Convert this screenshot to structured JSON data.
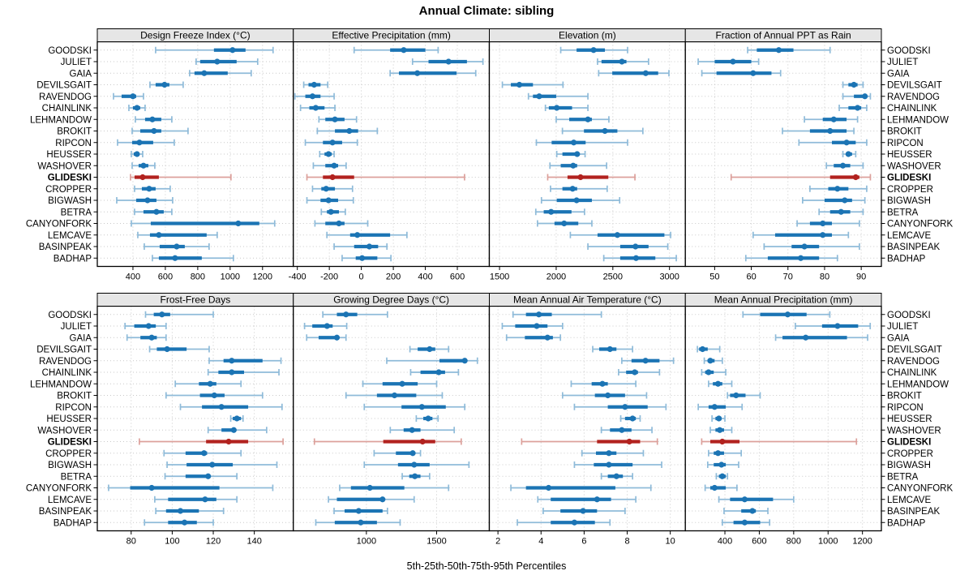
{
  "highlight_site": "GLIDESKI",
  "colors": {
    "blue": "#1b74b4",
    "blue_light": "#8fbbd9",
    "red": "#b2221f",
    "red_light": "#dca09b",
    "strip_bg": "#e6e6e6",
    "grid": "#c9c9c9",
    "border": "#000000",
    "text": "#000000"
  },
  "sites": [
    "GOODSKI",
    "JULIET",
    "GAIA",
    "DEVILSGAIT",
    "RAVENDOG",
    "CHAINLINK",
    "LEHMANDOW",
    "BROKIT",
    "RIPCON",
    "HEUSSER",
    "WASHOVER",
    "GLIDESKI",
    "CROPPER",
    "BIGWASH",
    "BETRA",
    "CANYONFORK",
    "LEMCAVE",
    "BASINPEAK",
    "BADHAP"
  ],
  "chart_data": {
    "type": "trellis-percentile-errorbar",
    "title": "Annual Climate: sibling",
    "xlabel": "5th-25th-50th-75th-95th Percentiles",
    "percentiles": [
      5,
      25,
      50,
      75,
      95
    ],
    "layout": "2 rows x 4 columns",
    "legend": "GLIDESKI series drawn in red, all other sites in blue",
    "panels": [
      {
        "title": "Design Freeze Index (°C)",
        "xlim": [
          180,
          1390
        ],
        "ticks": [
          400,
          600,
          800,
          1000,
          1200
        ],
        "values": [
          [
            540,
            900,
            1015,
            1095,
            1265
          ],
          [
            790,
            815,
            920,
            1040,
            1170
          ],
          [
            750,
            780,
            840,
            985,
            1130
          ],
          [
            505,
            540,
            595,
            625,
            710
          ],
          [
            280,
            330,
            400,
            420,
            465
          ],
          [
            375,
            400,
            425,
            445,
            475
          ],
          [
            415,
            475,
            520,
            575,
            640
          ],
          [
            395,
            445,
            530,
            575,
            740
          ],
          [
            305,
            395,
            440,
            525,
            655
          ],
          [
            390,
            405,
            425,
            440,
            460
          ],
          [
            395,
            435,
            465,
            495,
            535
          ],
          [
            385,
            410,
            460,
            560,
            1005
          ],
          [
            410,
            455,
            500,
            540,
            630
          ],
          [
            300,
            420,
            490,
            545,
            645
          ],
          [
            410,
            465,
            545,
            590,
            640
          ],
          [
            390,
            510,
            1050,
            1180,
            1275
          ],
          [
            430,
            505,
            560,
            855,
            920
          ],
          [
            470,
            565,
            670,
            720,
            870
          ],
          [
            520,
            560,
            660,
            825,
            1020
          ]
        ]
      },
      {
        "title": "Effective Precipitation (mm)",
        "xlim": [
          -425,
          800
        ],
        "ticks": [
          -400,
          -200,
          0,
          200,
          400,
          600
        ],
        "values": [
          [
            -45,
            180,
            265,
            400,
            480
          ],
          [
            320,
            420,
            545,
            660,
            760
          ],
          [
            180,
            235,
            350,
            595,
            715
          ],
          [
            -360,
            -330,
            -295,
            -255,
            -210
          ],
          [
            -415,
            -350,
            -305,
            -255,
            -170
          ],
          [
            -380,
            -325,
            -285,
            -230,
            -165
          ],
          [
            -265,
            -225,
            -165,
            -105,
            -30
          ],
          [
            -275,
            -165,
            -75,
            -20,
            100
          ],
          [
            -350,
            -240,
            -180,
            -120,
            -25
          ],
          [
            -260,
            -230,
            -205,
            -185,
            -170
          ],
          [
            -300,
            -225,
            -170,
            -145,
            -95
          ],
          [
            -340,
            -240,
            -180,
            -45,
            645
          ],
          [
            -305,
            -250,
            -220,
            -165,
            -55
          ],
          [
            -340,
            -255,
            -205,
            -145,
            -50
          ],
          [
            -250,
            -215,
            -190,
            -140,
            -100
          ],
          [
            -290,
            -225,
            -140,
            -105,
            40
          ],
          [
            -215,
            -70,
            -25,
            180,
            285
          ],
          [
            -170,
            -45,
            50,
            105,
            160
          ],
          [
            -120,
            -35,
            5,
            100,
            185
          ]
        ]
      },
      {
        "title": "Elevation (m)",
        "xlim": [
          1410,
          3140
        ],
        "ticks": [
          1500,
          2000,
          2500,
          3000
        ],
        "values": [
          [
            2040,
            2180,
            2330,
            2430,
            2630
          ],
          [
            2365,
            2400,
            2580,
            2620,
            2815
          ],
          [
            2375,
            2495,
            2790,
            2900,
            2995
          ],
          [
            1525,
            1600,
            1675,
            1795,
            2060
          ],
          [
            1755,
            1795,
            1850,
            2000,
            2280
          ],
          [
            1905,
            1935,
            2005,
            2140,
            2280
          ],
          [
            2000,
            2115,
            2280,
            2315,
            2465
          ],
          [
            2055,
            2245,
            2430,
            2540,
            2765
          ],
          [
            1825,
            1960,
            2155,
            2260,
            2630
          ],
          [
            2005,
            2055,
            2185,
            2200,
            2255
          ],
          [
            1945,
            2040,
            2150,
            2185,
            2445
          ],
          [
            1925,
            2100,
            2215,
            2460,
            2695
          ],
          [
            1950,
            2055,
            2145,
            2185,
            2450
          ],
          [
            1870,
            2005,
            2180,
            2315,
            2560
          ],
          [
            1820,
            1890,
            1955,
            2135,
            2250
          ],
          [
            1835,
            1985,
            2070,
            2195,
            2315
          ],
          [
            2125,
            2365,
            2540,
            2955,
            3010
          ],
          [
            2280,
            2565,
            2700,
            2815,
            2985
          ],
          [
            2420,
            2565,
            2705,
            2875,
            3060
          ]
        ]
      },
      {
        "title": "Fraction of Annual PPT as Rain",
        "xlim": [
          42,
          95.5
        ],
        "ticks": [
          50,
          60,
          70,
          80,
          90
        ],
        "values": [
          [
            59,
            61.5,
            67.5,
            71.5,
            81.5
          ],
          [
            45.5,
            50,
            55,
            60,
            62
          ],
          [
            46.5,
            50.5,
            60.5,
            65.5,
            68
          ],
          [
            85,
            86.5,
            88,
            89,
            90.5
          ],
          [
            85,
            88,
            91,
            91.5,
            92.5
          ],
          [
            84,
            86.5,
            89,
            90,
            91.5
          ],
          [
            74.5,
            79.5,
            82.5,
            86,
            89
          ],
          [
            68.5,
            76,
            81.5,
            86,
            88
          ],
          [
            73,
            82,
            86,
            88.5,
            91.5
          ],
          [
            85,
            86,
            86.5,
            87.5,
            88.5
          ],
          [
            80.5,
            82.5,
            85,
            87,
            90.5
          ],
          [
            54.5,
            81.5,
            88.5,
            89.5,
            92.5
          ],
          [
            76,
            81,
            83.5,
            86.5,
            91.5
          ],
          [
            74,
            80,
            85.5,
            87.5,
            91
          ],
          [
            78.5,
            81.5,
            84.5,
            87,
            90.5
          ],
          [
            72.5,
            76,
            79.5,
            82,
            89.5
          ],
          [
            60.5,
            66.5,
            79.5,
            82,
            86.5
          ],
          [
            63.5,
            71,
            74.5,
            78.5,
            89.5
          ],
          [
            58.5,
            64.5,
            73.5,
            78.5,
            83.5
          ]
        ]
      },
      {
        "title": "Frost-Free Days",
        "xlim": [
          63.5,
          159
        ],
        "ticks": [
          80,
          100,
          120,
          140
        ],
        "values": [
          [
            87,
            91,
            95,
            99,
            120
          ],
          [
            77,
            81.5,
            88.5,
            92,
            97
          ],
          [
            78,
            84.5,
            90,
            92.5,
            97
          ],
          [
            89,
            92.5,
            97.5,
            107,
            118
          ],
          [
            118,
            125,
            129,
            144,
            153
          ],
          [
            117.5,
            122.5,
            129,
            135,
            152
          ],
          [
            101.5,
            113,
            118.5,
            121.5,
            133.5
          ],
          [
            97,
            113.5,
            120.5,
            125.5,
            144
          ],
          [
            104,
            114.5,
            124,
            137,
            153.5
          ],
          [
            128.5,
            129.5,
            131.5,
            133.5,
            134.5
          ],
          [
            117.5,
            124,
            130,
            131,
            146
          ],
          [
            84,
            116.5,
            127.5,
            137,
            154
          ],
          [
            96,
            106.5,
            115.5,
            117,
            133.5
          ],
          [
            97.5,
            107,
            119.5,
            129.5,
            151
          ],
          [
            96.5,
            106.5,
            117.5,
            118.5,
            131.5
          ],
          [
            69,
            79.5,
            90,
            123,
            149
          ],
          [
            91.5,
            98,
            116,
            121.5,
            131.5
          ],
          [
            92,
            97,
            104,
            113,
            125
          ],
          [
            86.5,
            98,
            106,
            112,
            120
          ]
        ]
      },
      {
        "title": "Growing Degree Days (°C)",
        "xlim": [
          480,
          1875
        ],
        "ticks": [
          1000,
          1500
        ],
        "values": [
          [
            690,
            790,
            855,
            935,
            1150
          ],
          [
            560,
            615,
            720,
            760,
            860
          ],
          [
            575,
            660,
            790,
            800,
            855
          ],
          [
            1310,
            1365,
            1450,
            1490,
            1585
          ],
          [
            1145,
            1520,
            1700,
            1710,
            1790
          ],
          [
            1315,
            1385,
            1515,
            1560,
            1655
          ],
          [
            975,
            1115,
            1255,
            1365,
            1500
          ],
          [
            855,
            1075,
            1200,
            1355,
            1540
          ],
          [
            985,
            1250,
            1395,
            1565,
            1700
          ],
          [
            1355,
            1405,
            1440,
            1470,
            1510
          ],
          [
            1170,
            1265,
            1325,
            1385,
            1625
          ],
          [
            630,
            1120,
            1400,
            1490,
            1675
          ],
          [
            1055,
            1210,
            1330,
            1345,
            1385
          ],
          [
            985,
            1225,
            1340,
            1450,
            1730
          ],
          [
            1255,
            1305,
            1345,
            1385,
            1450
          ],
          [
            810,
            890,
            1025,
            1270,
            1585
          ],
          [
            730,
            790,
            1115,
            1130,
            1340
          ],
          [
            770,
            845,
            945,
            1115,
            1150
          ],
          [
            640,
            775,
            960,
            1075,
            1240
          ]
        ]
      },
      {
        "title": "Mean Annual Air Temperature (°C)",
        "xlim": [
          1.6,
          10.7
        ],
        "ticks": [
          2,
          4,
          6,
          8,
          10
        ],
        "values": [
          [
            2.7,
            3.3,
            3.9,
            4.5,
            6.8
          ],
          [
            2.2,
            2.8,
            3.8,
            4.3,
            5.0
          ],
          [
            2.4,
            3.25,
            4.3,
            4.55,
            4.9
          ],
          [
            6.4,
            6.7,
            7.2,
            7.5,
            8.25
          ],
          [
            7.75,
            8.2,
            8.85,
            9.5,
            10.15
          ],
          [
            7.6,
            7.95,
            8.35,
            8.5,
            9.5
          ],
          [
            5.4,
            6.35,
            6.85,
            7.1,
            8.4
          ],
          [
            5.0,
            6.5,
            7.1,
            7.9,
            8.9
          ],
          [
            5.55,
            7.1,
            7.9,
            8.95,
            9.8
          ],
          [
            7.7,
            7.9,
            8.25,
            8.4,
            8.6
          ],
          [
            6.8,
            7.2,
            7.75,
            8.2,
            9.15
          ],
          [
            3.1,
            6.6,
            8.1,
            8.6,
            9.4
          ],
          [
            5.9,
            6.55,
            7.15,
            7.5,
            8.75
          ],
          [
            5.55,
            6.45,
            7.15,
            8.25,
            9.6
          ],
          [
            6.8,
            7.1,
            7.5,
            7.8,
            8.25
          ],
          [
            2.6,
            3.3,
            4.35,
            7.45,
            9.1
          ],
          [
            3.85,
            4.45,
            6.6,
            7.25,
            8.4
          ],
          [
            4.1,
            4.9,
            5.95,
            6.6,
            7.9
          ],
          [
            2.9,
            4.45,
            5.55,
            6.5,
            7.2
          ]
        ]
      },
      {
        "title": "Mean Annual Precipitation (mm)",
        "xlim": [
          170,
          1310
        ],
        "ticks": [
          400,
          600,
          800,
          1000,
          1200
        ],
        "values": [
          [
            505,
            605,
            765,
            875,
            1010
          ],
          [
            810,
            965,
            1055,
            1175,
            1245
          ],
          [
            695,
            735,
            870,
            1110,
            1230
          ],
          [
            240,
            250,
            270,
            300,
            370
          ],
          [
            280,
            300,
            315,
            340,
            385
          ],
          [
            265,
            285,
            305,
            335,
            405
          ],
          [
            305,
            330,
            360,
            385,
            440
          ],
          [
            415,
            430,
            465,
            520,
            605
          ],
          [
            245,
            305,
            340,
            405,
            500
          ],
          [
            325,
            345,
            365,
            380,
            400
          ],
          [
            315,
            345,
            370,
            395,
            440
          ],
          [
            265,
            315,
            385,
            485,
            1165
          ],
          [
            305,
            335,
            360,
            395,
            495
          ],
          [
            300,
            335,
            380,
            405,
            480
          ],
          [
            350,
            365,
            385,
            405,
            415
          ],
          [
            285,
            315,
            340,
            405,
            470
          ],
          [
            365,
            430,
            515,
            680,
            800
          ],
          [
            395,
            495,
            560,
            580,
            650
          ],
          [
            385,
            450,
            515,
            605,
            660
          ]
        ]
      }
    ]
  }
}
